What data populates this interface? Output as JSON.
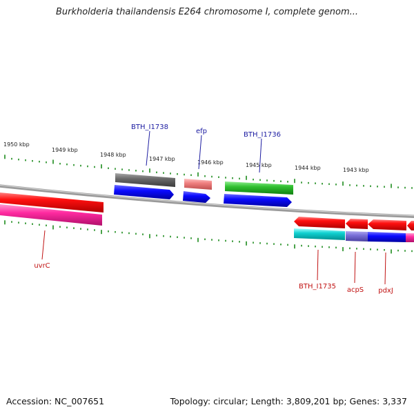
{
  "title": "Burkholderia thailandensis E264 chromosome I, complete genom...",
  "footer": {
    "accession": "Accession: NC_007651",
    "topology": "Topology: circular; Length: 3,809,201 bp; Genes: 3,337"
  },
  "colors": {
    "tick": "#1a8a1a",
    "backbone": "#8c8c8c",
    "label_top": "#1a1aa0",
    "label_bottom": "#c01010"
  },
  "kbp_labels": [
    "1950 kbp",
    "1949 kbp",
    "1948 kbp",
    "1947 kbp",
    "1946 kbp",
    "1945 kbp",
    "1944 kbp",
    "1943 kbp"
  ],
  "gene_labels_top": [
    "BTH_I1738",
    "efp",
    "BTH_I1736"
  ],
  "gene_labels_bottom": [
    "uvrC",
    "BTH_I1735",
    "acpS",
    "pdxJ"
  ]
}
